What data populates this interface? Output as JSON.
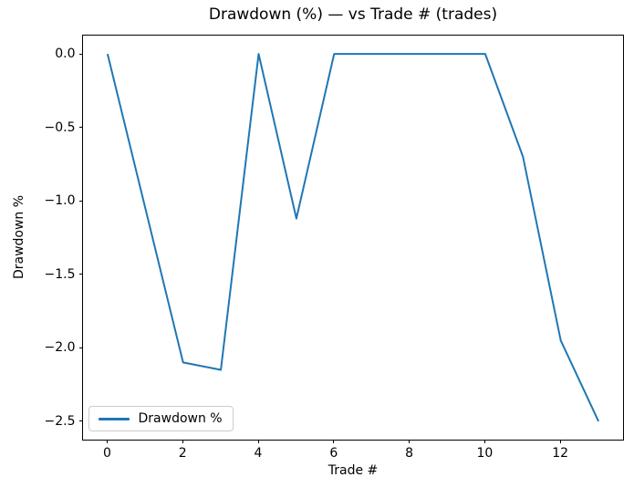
{
  "figure": {
    "background": "#ffffff",
    "text_color": "#000000"
  },
  "chart_data": {
    "type": "line",
    "title": "Drawdown (%) — vs Trade # (trades)",
    "xlabel": "Trade #",
    "ylabel": "Drawdown %",
    "grid": false,
    "legend_position": "lower-left",
    "line_color": "#1f77b4",
    "line_width": 2,
    "x": [
      0,
      1,
      2,
      3,
      4,
      5,
      6,
      7,
      8,
      9,
      10,
      11,
      12,
      13
    ],
    "series": [
      {
        "name": "Drawdown %",
        "values": [
          0.0,
          -1.05,
          -2.1,
          -2.15,
          0.0,
          -1.12,
          0.0,
          0.0,
          0.0,
          0.0,
          0.0,
          -0.7,
          -1.95,
          -2.5
        ]
      }
    ],
    "xlim": [
      -0.65,
      13.65
    ],
    "ylim": [
      -2.625,
      0.125
    ],
    "xticks": {
      "values": [
        0,
        2,
        4,
        6,
        8,
        10,
        12
      ],
      "labels": [
        "0",
        "2",
        "4",
        "6",
        "8",
        "10",
        "12"
      ]
    },
    "yticks": {
      "values": [
        0,
        -0.5,
        -1,
        -1.5,
        -2,
        -2.5
      ],
      "labels": [
        "0.0",
        "−0.5",
        "−1.0",
        "−1.5",
        "−2.0",
        "−2.5"
      ]
    }
  }
}
